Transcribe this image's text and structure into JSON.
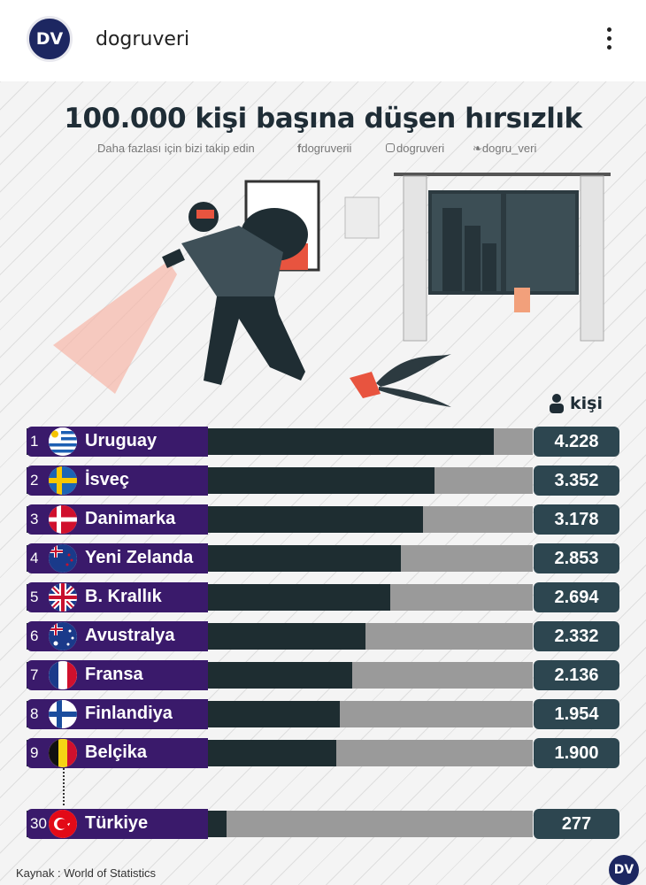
{
  "account": {
    "initials": "DV",
    "name": "dogruveri"
  },
  "header": {
    "title": "100.000 kişi başına düşen hırsızlık",
    "follow": "Daha fazlası için bizi takip edin",
    "facebook": "dogruverii",
    "instagram": "dogruveri",
    "twitter": "dogru_veri"
  },
  "unit_label": "kişi",
  "source": "Kaynak : World of Statistics",
  "colors": {
    "label_bg": "#3a1a6b",
    "bar_fill": "#1e2d31",
    "bar_track": "#9a9a9a",
    "value_bg": "#2d4650"
  },
  "chart_data": {
    "type": "bar",
    "orientation": "horizontal",
    "title": "100.000 kişi başına düşen hırsızlık",
    "unit": "kişi",
    "xlim": [
      0,
      4800
    ],
    "ranks": [
      "1",
      "2",
      "3",
      "4",
      "5",
      "6",
      "7",
      "8",
      "9",
      "30"
    ],
    "categories": [
      "Uruguay",
      "İsveç",
      "Danimarka",
      "Yeni Zelanda",
      "B. Krallık",
      "Avustralya",
      "Fransa",
      "Finlandiya",
      "Belçika",
      "Türkiye"
    ],
    "values": [
      4228,
      3352,
      3178,
      2853,
      2694,
      2332,
      2136,
      1954,
      1900,
      277
    ],
    "value_labels": [
      "4.228",
      "3.352",
      "3.178",
      "2.853",
      "2.694",
      "2.332",
      "2.136",
      "1.954",
      "1.900",
      "277"
    ],
    "flags": [
      "uruguay-flag",
      "sweden-flag",
      "denmark-flag",
      "new-zealand-flag",
      "uk-flag",
      "australia-flag",
      "france-flag",
      "finland-flag",
      "belgium-flag",
      "turkey-flag"
    ]
  }
}
